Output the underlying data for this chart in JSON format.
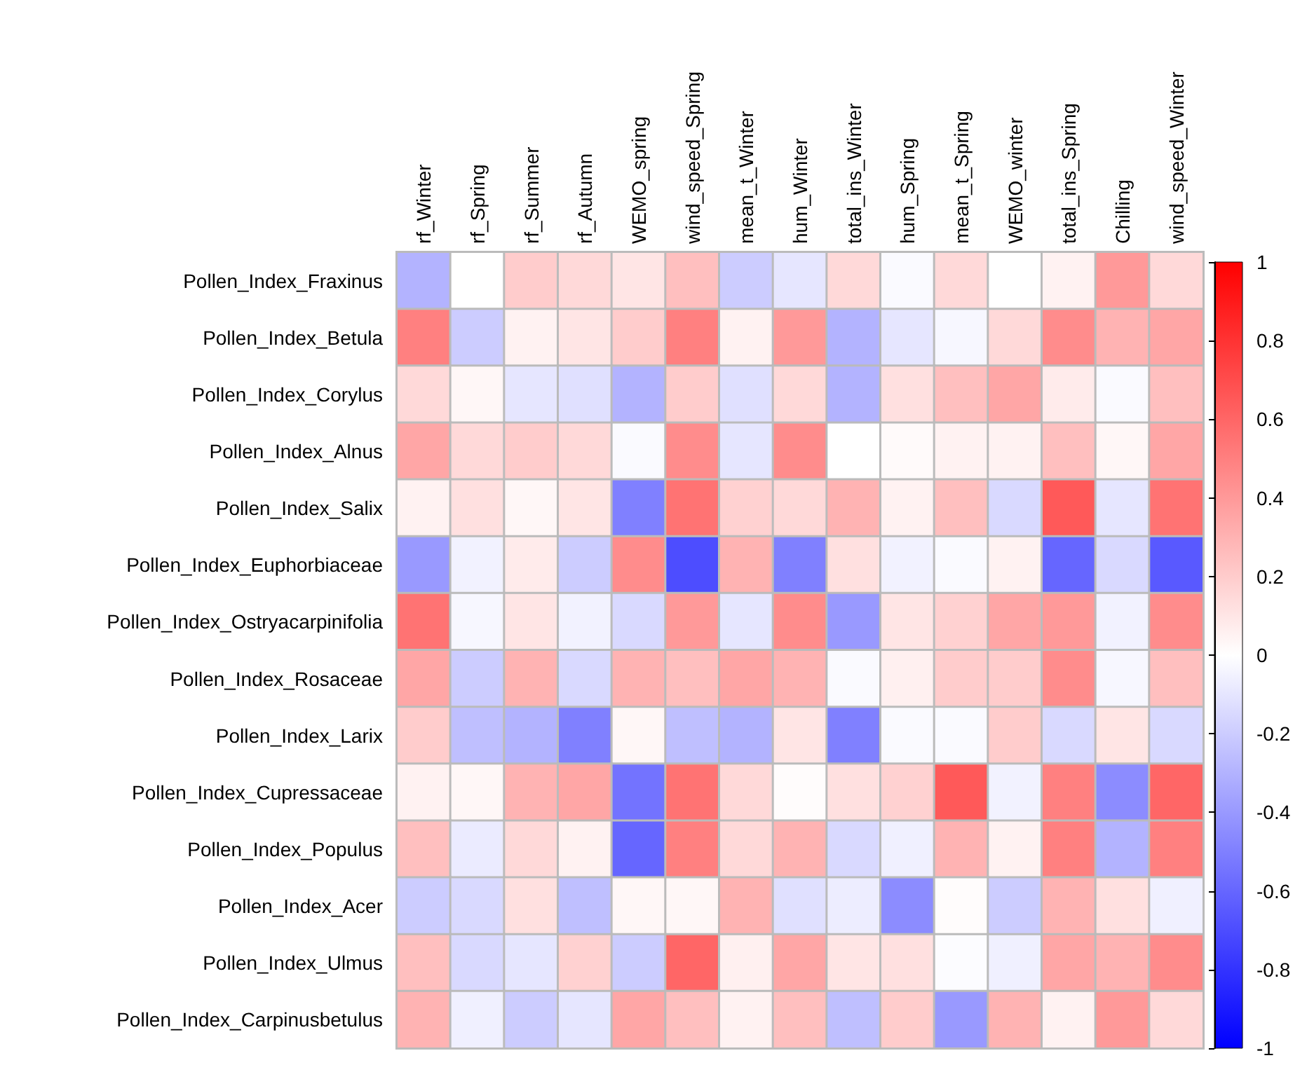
{
  "chart_data": {
    "type": "heatmap",
    "categories": [
      "rf_Winter",
      "rf_Spring",
      "rf_Summer",
      "rf_Autumn",
      "WEMO_spring",
      "wind_speed_Spring",
      "mean_t_Winter",
      "hum_Winter",
      "total_ins_Winter",
      "hum_Spring",
      "mean_t_Spring",
      "WEMO_winter",
      "total_ins_Spring",
      "Chilling",
      "wind_speed_Winter"
    ],
    "y_categories": [
      "Pollen_Index_Fraxinus",
      "Pollen_Index_Betula",
      "Pollen_Index_Corylus",
      "Pollen_Index_Alnus",
      "Pollen_Index_Salix",
      "Pollen_Index_Euphorbiaceae",
      "Pollen_Index_Ostryacarpinifolia",
      "Pollen_Index_Rosaceae",
      "Pollen_Index_Larix",
      "Pollen_Index_Cupressaceae",
      "Pollen_Index_Populus",
      "Pollen_Index_Acer",
      "Pollen_Index_Ulmus",
      "Pollen_Index_Carpinusbetulus"
    ],
    "cells": [
      [
        -0.3,
        0.0,
        0.2,
        0.15,
        0.1,
        0.25,
        -0.2,
        -0.1,
        0.15,
        -0.02,
        0.15,
        0.0,
        0.05,
        0.4,
        0.15
      ],
      [
        0.5,
        -0.2,
        0.05,
        0.1,
        0.2,
        0.5,
        0.05,
        0.4,
        -0.3,
        -0.1,
        -0.03,
        0.15,
        0.45,
        0.3,
        0.35
      ],
      [
        0.15,
        0.03,
        -0.1,
        -0.12,
        -0.3,
        0.2,
        -0.12,
        0.15,
        -0.3,
        0.12,
        0.25,
        0.35,
        0.08,
        -0.02,
        0.25
      ],
      [
        0.35,
        0.15,
        0.2,
        0.15,
        -0.02,
        0.45,
        -0.1,
        0.45,
        0.0,
        0.02,
        0.05,
        0.05,
        0.25,
        0.03,
        0.35
      ],
      [
        0.05,
        0.12,
        0.03,
        0.1,
        -0.5,
        0.55,
        0.18,
        0.15,
        0.3,
        0.05,
        0.25,
        -0.15,
        0.65,
        -0.1,
        0.55
      ],
      [
        -0.4,
        -0.05,
        0.08,
        -0.2,
        0.45,
        -0.7,
        0.3,
        -0.5,
        0.12,
        -0.05,
        -0.02,
        0.05,
        -0.6,
        -0.15,
        -0.65
      ],
      [
        0.55,
        -0.03,
        0.1,
        -0.05,
        -0.15,
        0.4,
        -0.1,
        0.45,
        -0.4,
        0.1,
        0.18,
        0.35,
        0.4,
        -0.05,
        0.45
      ],
      [
        0.35,
        -0.2,
        0.3,
        -0.15,
        0.3,
        0.25,
        0.35,
        0.3,
        -0.02,
        0.06,
        0.2,
        0.2,
        0.45,
        -0.03,
        0.25
      ],
      [
        0.2,
        -0.25,
        -0.3,
        -0.5,
        0.03,
        -0.25,
        -0.3,
        0.1,
        -0.5,
        -0.02,
        -0.02,
        0.2,
        -0.15,
        0.1,
        -0.15
      ],
      [
        0.05,
        0.03,
        0.3,
        0.35,
        -0.55,
        0.55,
        0.15,
        0.01,
        0.12,
        0.18,
        0.65,
        -0.05,
        0.5,
        -0.45,
        0.6
      ],
      [
        0.25,
        -0.08,
        0.15,
        0.05,
        -0.6,
        0.5,
        0.15,
        0.3,
        -0.15,
        -0.06,
        0.3,
        0.05,
        0.5,
        -0.3,
        0.5
      ],
      [
        -0.2,
        -0.15,
        0.12,
        -0.25,
        0.03,
        0.03,
        0.3,
        -0.12,
        -0.07,
        -0.45,
        0.01,
        -0.2,
        0.3,
        0.12,
        -0.06
      ],
      [
        0.25,
        -0.15,
        -0.1,
        0.18,
        -0.2,
        0.6,
        0.06,
        0.35,
        0.1,
        0.12,
        -0.01,
        -0.06,
        0.35,
        0.3,
        0.45
      ],
      [
        0.3,
        -0.06,
        -0.2,
        -0.1,
        0.35,
        0.25,
        0.05,
        0.25,
        -0.25,
        0.2,
        -0.4,
        0.3,
        0.05,
        0.4,
        0.15
      ]
    ],
    "clim": [
      -1,
      1
    ],
    "cticks": [
      -1,
      -0.8,
      -0.6,
      -0.4,
      -0.2,
      0,
      0.2,
      0.4,
      0.6,
      0.8,
      1
    ]
  }
}
